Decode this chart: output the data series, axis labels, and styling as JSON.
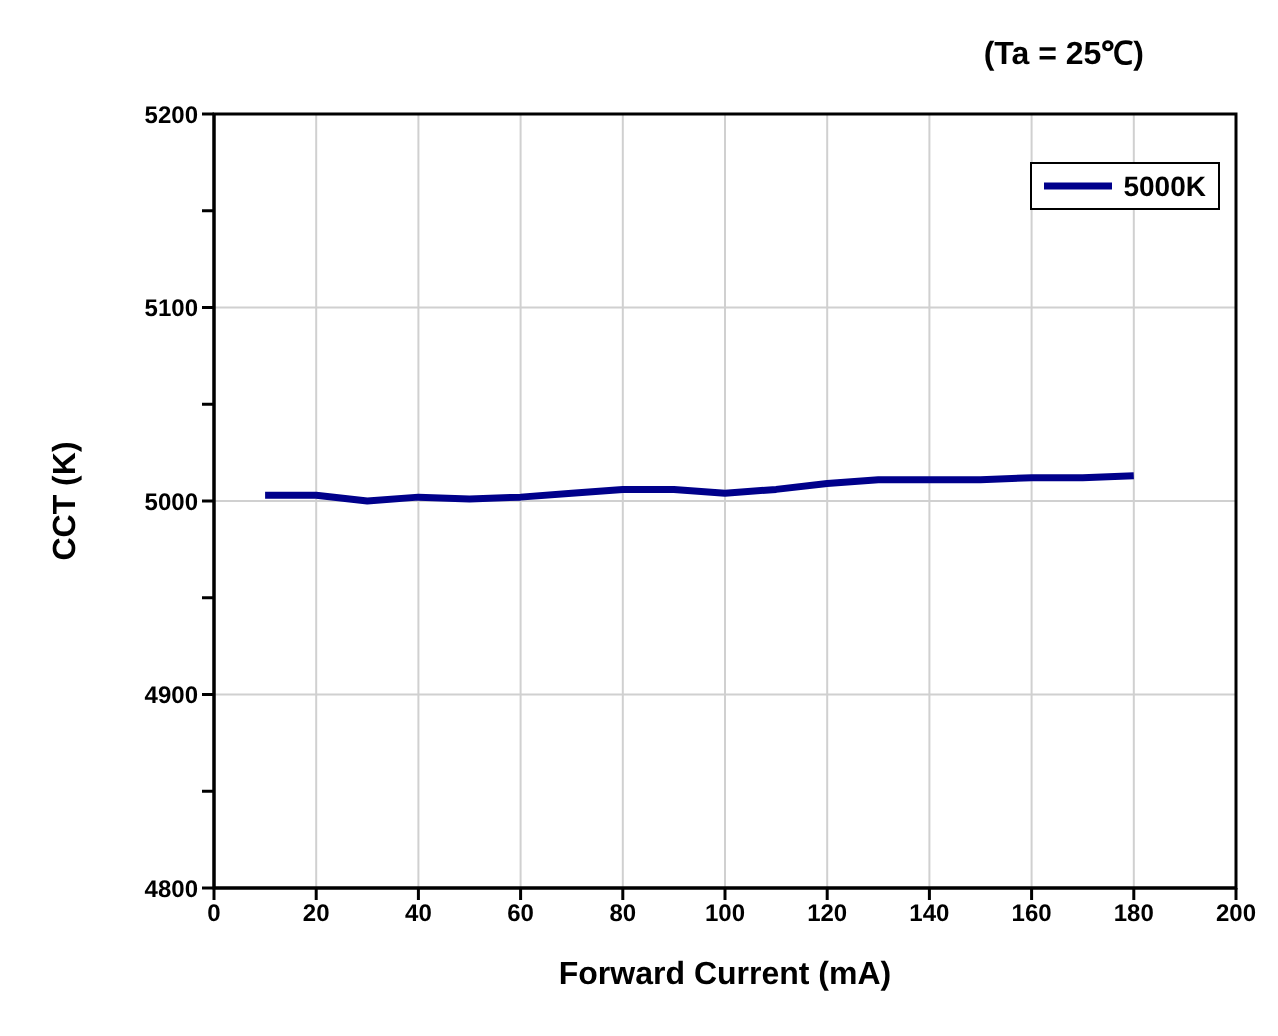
{
  "chart_data": {
    "type": "line",
    "title": "(Ta = 25℃)",
    "xlabel": "Forward Current (mA)",
    "ylabel": "CCT (K)",
    "x": [
      10,
      20,
      30,
      40,
      50,
      60,
      70,
      80,
      90,
      100,
      110,
      120,
      130,
      140,
      150,
      160,
      170,
      180
    ],
    "series": [
      {
        "name": "5000K",
        "color": "#00008b",
        "values": [
          5003,
          5003,
          5000,
          5002,
          5001,
          5002,
          5004,
          5006,
          5006,
          5004,
          5006,
          5009,
          5011,
          5011,
          5011,
          5012,
          5012,
          5013
        ]
      }
    ],
    "xlim": [
      0,
      200
    ],
    "xticks": [
      0,
      20,
      40,
      60,
      80,
      100,
      120,
      140,
      160,
      180,
      200
    ],
    "ylim": [
      4800,
      5200
    ],
    "yticks": [
      4800,
      {
        "value": 4850,
        "label": null
      },
      4900,
      {
        "value": 4950,
        "label": null
      },
      5000,
      {
        "value": 5050,
        "label": null
      },
      5100,
      {
        "value": 5150,
        "label": null
      },
      5200
    ],
    "grid": true,
    "legend": "top right",
    "marker": "none",
    "line_style": "solid"
  }
}
